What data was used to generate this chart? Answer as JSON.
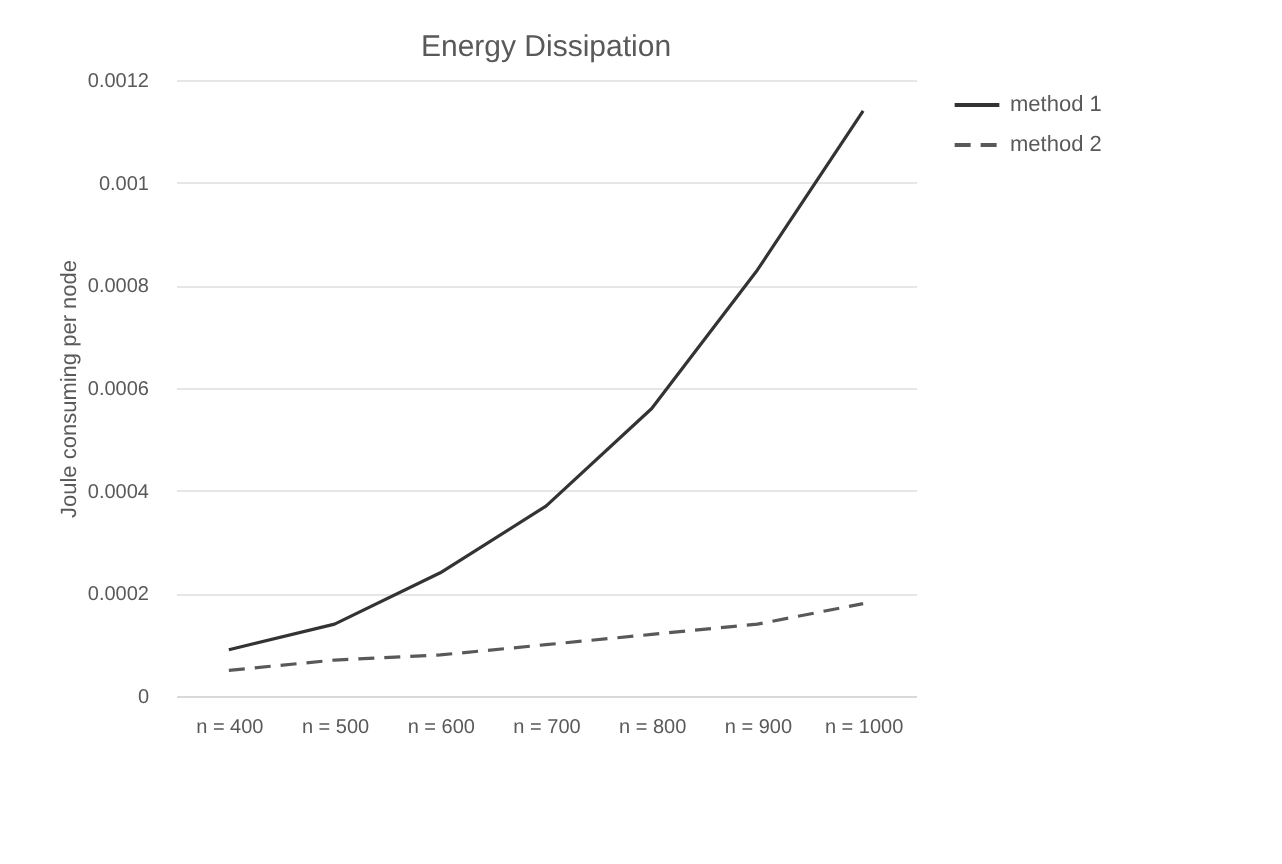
{
  "chart_data": {
    "type": "line",
    "title": "Energy Dissipation",
    "ylabel": "Joule consuming per node",
    "categories": [
      "n = 400",
      "n = 500",
      "n = 600",
      "n = 700",
      "n = 800",
      "n = 900",
      "n = 1000"
    ],
    "series": [
      {
        "name": "method 1",
        "color": "#333333",
        "line_style": "solid",
        "values": [
          9e-05,
          0.00014,
          0.00024,
          0.00037,
          0.00056,
          0.00083,
          0.00114
        ]
      },
      {
        "name": "method 2",
        "color": "#595959",
        "line_style": "dashed",
        "values": [
          5e-05,
          7e-05,
          8e-05,
          0.0001,
          0.00012,
          0.00014,
          0.00018
        ]
      }
    ],
    "ylim": [
      0,
      0.0012
    ],
    "yticks": [
      0,
      0.0002,
      0.0004,
      0.0006,
      0.0008,
      0.001,
      0.0012
    ],
    "grid": "y",
    "legend": "right",
    "marker": "none"
  }
}
